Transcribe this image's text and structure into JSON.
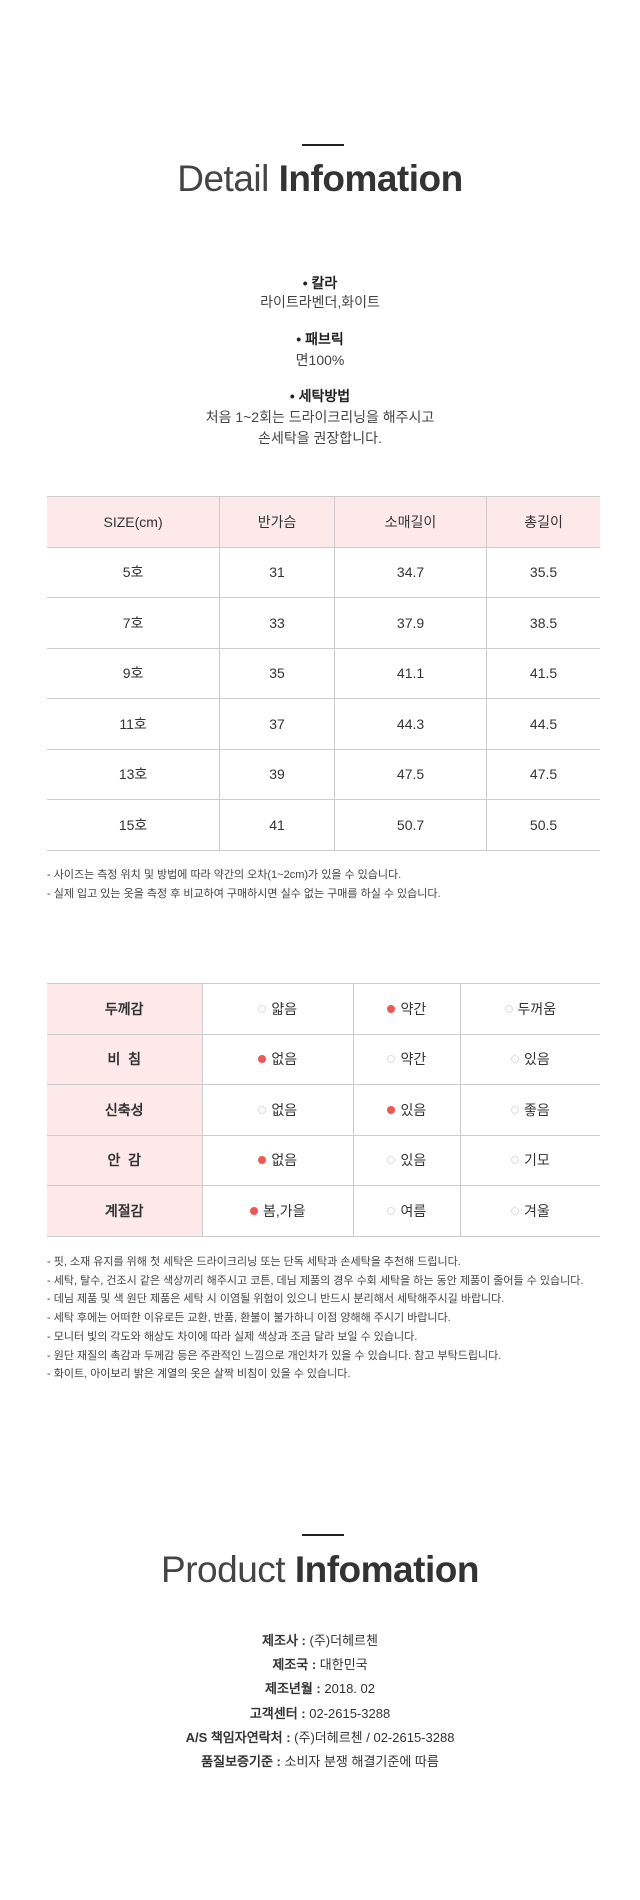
{
  "detail": {
    "title_light": "Detail",
    "title_bold": "Infomation",
    "specs": [
      {
        "label": "칼라",
        "values": [
          "라이트라벤더,화이트"
        ]
      },
      {
        "label": "패브릭",
        "values": [
          "면100%"
        ]
      },
      {
        "label": "세탁방법",
        "values": [
          "처음 1~2회는 드라이크리닝을 해주시고",
          "손세탁을 권장합니다."
        ]
      }
    ]
  },
  "size_table": {
    "headers": [
      "SIZE(cm)",
      "반가슴",
      "소매길이",
      "총길이"
    ],
    "rows": [
      [
        "5호",
        "31",
        "34.7",
        "35.5"
      ],
      [
        "7호",
        "33",
        "37.9",
        "38.5"
      ],
      [
        "9호",
        "35",
        "41.1",
        "41.5"
      ],
      [
        "11호",
        "37",
        "44.3",
        "44.5"
      ],
      [
        "13호",
        "39",
        "47.5",
        "47.5"
      ],
      [
        "15호",
        "41",
        "50.7",
        "50.5"
      ]
    ]
  },
  "size_notes": [
    "- 사이즈는 측정 위치 및 방법에 따라 약간의 오차(1~2cm)가 있을 수 있습니다.",
    "- 실제 입고 있는 옷을 측정 후 비교하여 구매하시면 실수 없는 구매를 하실 수 있습니다."
  ],
  "feel_table": {
    "rows": [
      {
        "label": "두께감",
        "options": [
          "얇음",
          "약간",
          "두꺼움"
        ],
        "selected": 1
      },
      {
        "label": "비  침",
        "options": [
          "없음",
          "약간",
          "있음"
        ],
        "selected": 0
      },
      {
        "label": "신축성",
        "options": [
          "없음",
          "있음",
          "좋음"
        ],
        "selected": 1
      },
      {
        "label": "안  감",
        "options": [
          "없음",
          "있음",
          "기모"
        ],
        "selected": 0
      },
      {
        "label": "계절감",
        "options": [
          "봄,가을",
          "여름",
          "겨울"
        ],
        "selected": 0
      }
    ]
  },
  "care_notes": [
    "- 핏, 소재 유지를 위해 첫 세탁은 드라이크리닝 또는 단독 세탁과 손세탁을 추천해 드립니다.",
    "- 세탁, 탈수, 건조시 같은 색상끼리 해주시고 코튼, 데님 제품의 경우 수회 세탁을 하는 동안 제품이 줄어들 수 있습니다.",
    "- 데님 제품 및 색 원단 제품은 세탁 시 이염될 위험이 있으니 반드시 분리해서 세탁해주시길 바랍니다.",
    "- 세탁 후에는 어떠한 이유로든 교환, 반품, 환불이 불가하니 이점 양해해 주시기 바랍니다.",
    "- 모니터 빛의 각도와 해상도 차이에 따라 실제 색상과 조금 달라 보일 수 있습니다.",
    "- 원단 재질의 촉감과 두께감 등은 주관적인 느낌으로 개인차가 있을 수 있습니다. 참고 부탁드립니다.",
    "- 화이트, 아이보리 밝은 계열의 옷은 살짝 비침이 있을 수 있습니다."
  ],
  "product": {
    "title_light": "Product",
    "title_bold": "Infomation",
    "lines": [
      {
        "label": "제조사 :",
        "value": "(주)더헤르첸"
      },
      {
        "label": "제조국 :",
        "value": "대한민국"
      },
      {
        "label": "제조년월 :",
        "value": "2018. 02"
      },
      {
        "label": "고객센터 :",
        "value": "02-2615-3288"
      },
      {
        "label": "A/S 책임자연락처 :",
        "value": "(주)더헤르첸 / 02-2615-3288"
      },
      {
        "label": "품질보증기준 :",
        "value": "소비자 분쟁 해결기준에 따름"
      }
    ]
  },
  "colors": {
    "header_bg": "#fde9e9",
    "selected_dot": "#f25555",
    "border": "#cccccc"
  }
}
